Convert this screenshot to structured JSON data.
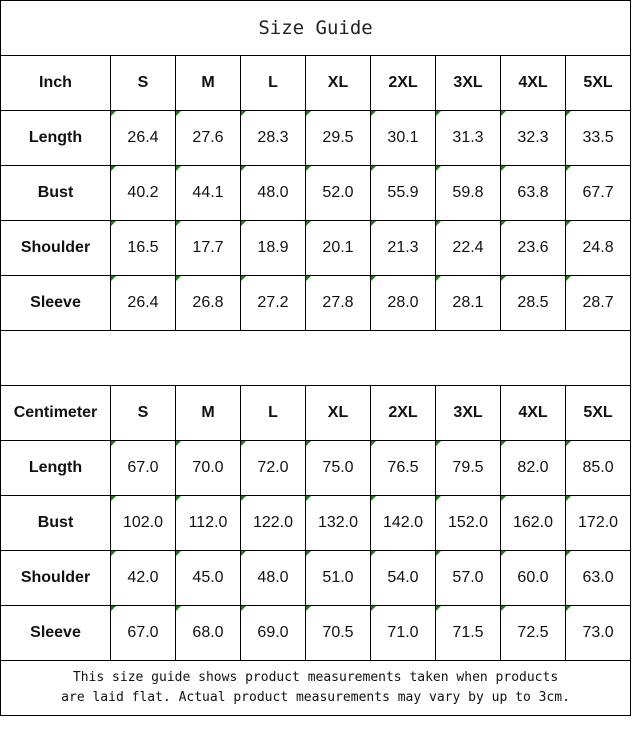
{
  "title": "Size Guide",
  "sizes": [
    "S",
    "M",
    "L",
    "XL",
    "2XL",
    "3XL",
    "4XL",
    "5XL"
  ],
  "error_indicator_color": "#1e7b1e",
  "inch": {
    "unit_label": "Inch",
    "rows": [
      {
        "label": "Length",
        "values": [
          "26.4",
          "27.6",
          "28.3",
          "29.5",
          "30.1",
          "31.3",
          "32.3",
          "33.5"
        ]
      },
      {
        "label": "Bust",
        "values": [
          "40.2",
          "44.1",
          "48.0",
          "52.0",
          "55.9",
          "59.8",
          "63.8",
          "67.7"
        ]
      },
      {
        "label": "Shoulder",
        "values": [
          "16.5",
          "17.7",
          "18.9",
          "20.1",
          "21.3",
          "22.4",
          "23.6",
          "24.8"
        ]
      },
      {
        "label": "Sleeve",
        "values": [
          "26.4",
          "26.8",
          "27.2",
          "27.8",
          "28.0",
          "28.1",
          "28.5",
          "28.7"
        ]
      }
    ]
  },
  "cm": {
    "unit_label": "Centimeter",
    "rows": [
      {
        "label": "Length",
        "values": [
          "67.0",
          "70.0",
          "72.0",
          "75.0",
          "76.5",
          "79.5",
          "82.0",
          "85.0"
        ]
      },
      {
        "label": "Bust",
        "values": [
          "102.0",
          "112.0",
          "122.0",
          "132.0",
          "142.0",
          "152.0",
          "162.0",
          "172.0"
        ]
      },
      {
        "label": "Shoulder",
        "values": [
          "42.0",
          "45.0",
          "48.0",
          "51.0",
          "54.0",
          "57.0",
          "60.0",
          "63.0"
        ]
      },
      {
        "label": "Sleeve",
        "values": [
          "67.0",
          "68.0",
          "69.0",
          "70.5",
          "71.0",
          "71.5",
          "72.5",
          "73.0"
        ]
      }
    ]
  },
  "note": {
    "line1": "This size guide shows product measurements taken when products",
    "line2": "are laid flat. Actual product measurements may vary by up to 3cm."
  }
}
